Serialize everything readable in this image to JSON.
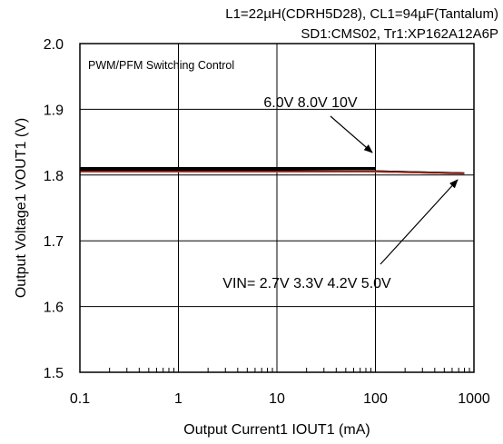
{
  "notes": {
    "line1": "L1=22µH(CDRH5D28), CL1=94µF(Tantalum)",
    "line2": "SD1:CMS02, Tr1:XP162A12A6P"
  },
  "chart_data": {
    "type": "line",
    "title": "PWM/PFM Switching Control",
    "xlabel": "Output Current1  IOUT1 (mA)",
    "ylabel": "Output Voltage1  VOUT1 (V)",
    "x_scale": "log",
    "xlim": [
      0.1,
      1000
    ],
    "ylim": [
      1.5,
      2.0
    ],
    "x_tick_labels": [
      "0.1",
      "1",
      "10",
      "100",
      "1000"
    ],
    "x_tick_values": [
      0.1,
      1,
      10,
      100,
      1000
    ],
    "y_tick_labels": [
      "1.5",
      "1.6",
      "1.7",
      "1.8",
      "1.9",
      "2.0"
    ],
    "y_tick_values": [
      1.5,
      1.6,
      1.7,
      1.8,
      1.9,
      2.0
    ],
    "grid": true,
    "annotations": [
      {
        "text": "6.0V 8.0V 10V",
        "points_to": {
          "x": 100,
          "y": 1.81
        }
      },
      {
        "text": "VIN= 2.7V 3.3V 4.2V 5.0V",
        "points_to": {
          "x": 700,
          "y": 1.803
        }
      }
    ],
    "series": [
      {
        "color": "#000000",
        "x": [
          0.1,
          1,
          10,
          100
        ],
        "y": [
          1.811,
          1.811,
          1.811,
          1.811
        ]
      },
      {
        "color": "#000000",
        "x": [
          0.1,
          1,
          10,
          100
        ],
        "y": [
          1.81,
          1.81,
          1.81,
          1.81
        ]
      },
      {
        "color": "#000000",
        "x": [
          0.1,
          1,
          10,
          100
        ],
        "y": [
          1.809,
          1.809,
          1.809,
          1.809
        ]
      },
      {
        "color": "#000000",
        "x": [
          0.1,
          1,
          10,
          100,
          400,
          800
        ],
        "y": [
          1.808,
          1.808,
          1.807,
          1.806,
          1.804,
          1.803
        ]
      },
      {
        "color": "#000000",
        "x": [
          0.1,
          1,
          10,
          100,
          400,
          800
        ],
        "y": [
          1.807,
          1.807,
          1.806,
          1.806,
          1.804,
          1.803
        ]
      },
      {
        "color": "#000000",
        "x": [
          0.1,
          1,
          10,
          100,
          400,
          800
        ],
        "y": [
          1.806,
          1.806,
          1.806,
          1.805,
          1.803,
          1.802
        ]
      },
      {
        "color": "#c0392b",
        "x": [
          0.1,
          1,
          10,
          100,
          400,
          800
        ],
        "y": [
          1.805,
          1.805,
          1.805,
          1.805,
          1.803,
          1.802
        ]
      }
    ]
  }
}
